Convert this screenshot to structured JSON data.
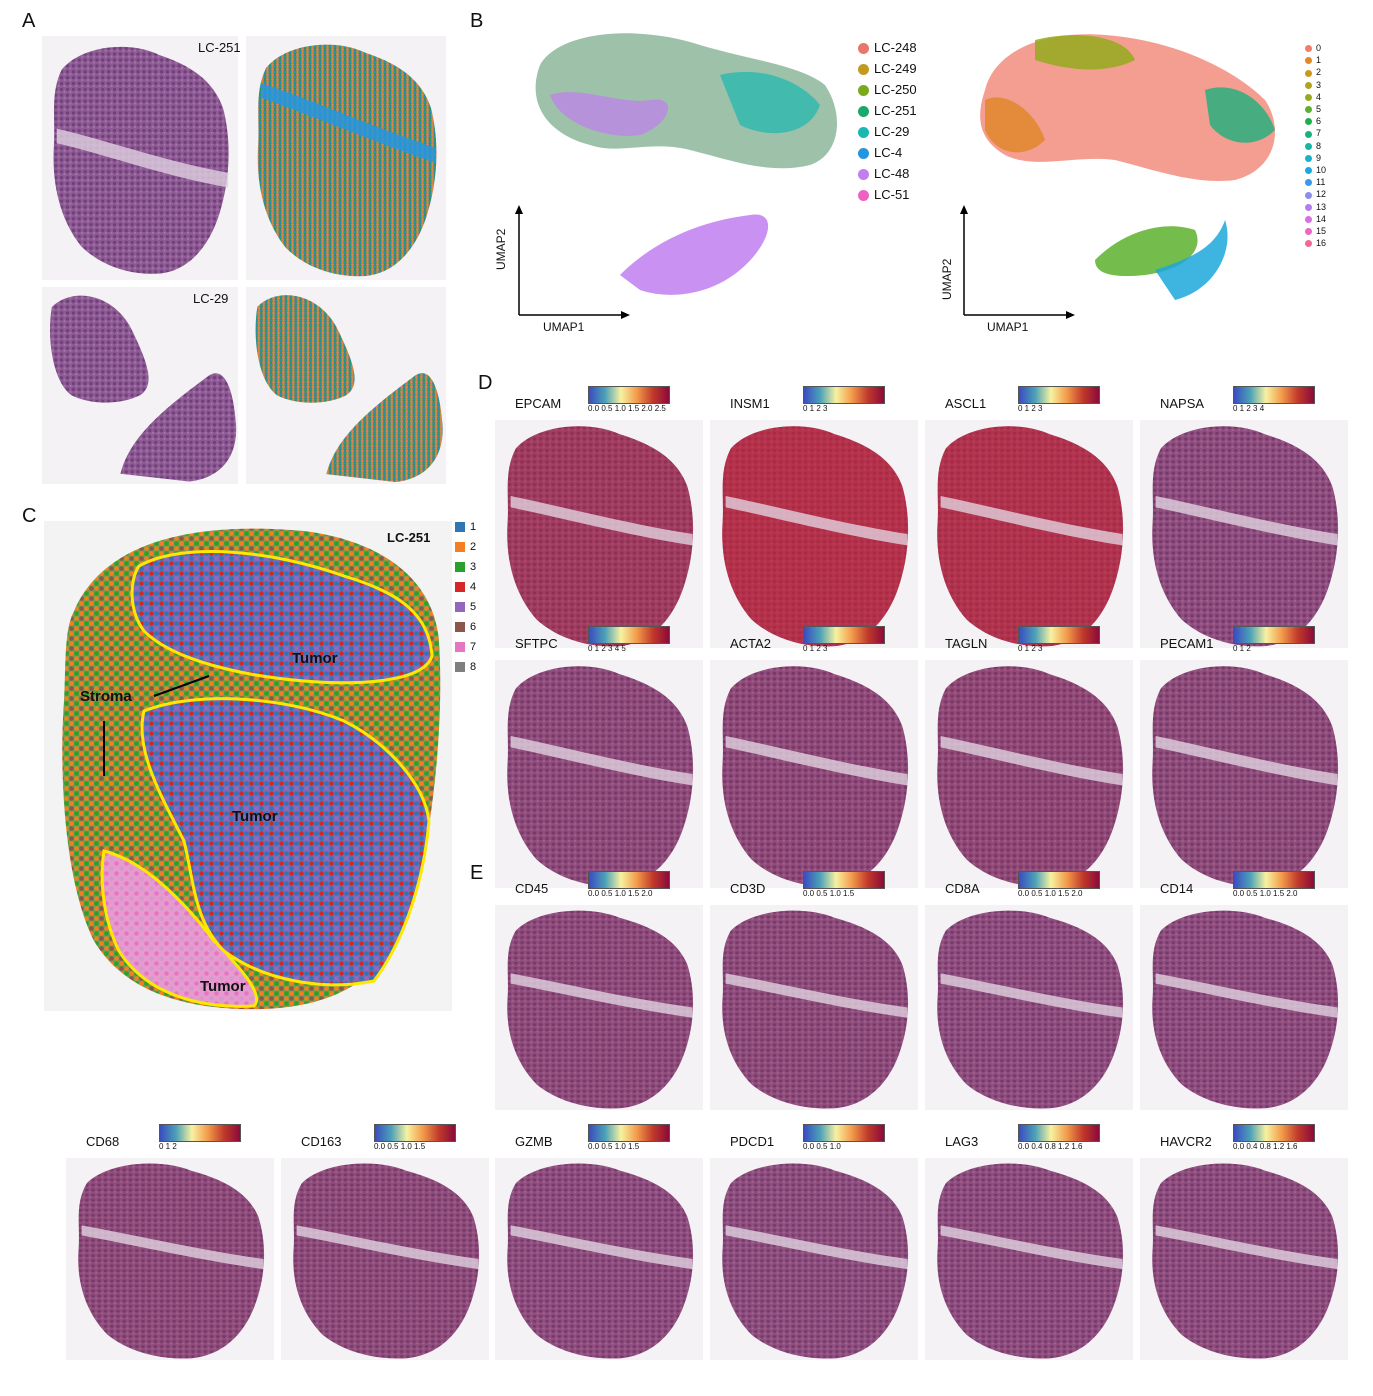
{
  "panels": {
    "A": "A",
    "B": "B",
    "C": "C",
    "D": "D",
    "E": "E"
  },
  "panel_a": {
    "sample_top": "LC-251",
    "sample_bottom": "LC-29"
  },
  "panel_b": {
    "axis_x": "UMAP1",
    "axis_y": "UMAP2",
    "samples": [
      {
        "label": "LC-248",
        "color": "#e8766b"
      },
      {
        "label": "LC-249",
        "color": "#c49a1c"
      },
      {
        "label": "LC-250",
        "color": "#7ca81e"
      },
      {
        "label": "LC-251",
        "color": "#1ca86a"
      },
      {
        "label": "LC-29",
        "color": "#1cb6b0"
      },
      {
        "label": "LC-4",
        "color": "#2496e0"
      },
      {
        "label": "LC-48",
        "color": "#c07ef0"
      },
      {
        "label": "LC-51",
        "color": "#f060c0"
      }
    ],
    "clusters": [
      {
        "label": "0",
        "color": "#f07c6c"
      },
      {
        "label": "1",
        "color": "#e0882c"
      },
      {
        "label": "2",
        "color": "#cc981c"
      },
      {
        "label": "3",
        "color": "#b0a41c"
      },
      {
        "label": "4",
        "color": "#94ac1c"
      },
      {
        "label": "5",
        "color": "#5cb02c"
      },
      {
        "label": "6",
        "color": "#1cb04c"
      },
      {
        "label": "7",
        "color": "#1cb07c"
      },
      {
        "label": "8",
        "color": "#1cb4a4"
      },
      {
        "label": "9",
        "color": "#1cb0c4"
      },
      {
        "label": "10",
        "color": "#1ca8dc"
      },
      {
        "label": "11",
        "color": "#3c98ec"
      },
      {
        "label": "12",
        "color": "#8c8cf0"
      },
      {
        "label": "13",
        "color": "#b47cf0"
      },
      {
        "label": "14",
        "color": "#d870e0"
      },
      {
        "label": "15",
        "color": "#ec64c4"
      },
      {
        "label": "16",
        "color": "#f06898"
      }
    ]
  },
  "panel_c": {
    "sample": "LC-251",
    "regions": {
      "tumor": "Tumor",
      "stroma": "Stroma"
    },
    "clusters": [
      {
        "label": "1",
        "color": "#2f77b4"
      },
      {
        "label": "2",
        "color": "#f57f20"
      },
      {
        "label": "3",
        "color": "#2ca02c"
      },
      {
        "label": "4",
        "color": "#d62728"
      },
      {
        "label": "5",
        "color": "#9467bd"
      },
      {
        "label": "6",
        "color": "#8c564b"
      },
      {
        "label": "7",
        "color": "#e377c2"
      },
      {
        "label": "8",
        "color": "#7f7f7f"
      }
    ]
  },
  "panel_d": [
    {
      "gene": "EPCAM",
      "ticks": "0.0 0.5 1.0 1.5 2.0 2.5",
      "level": 0.55
    },
    {
      "gene": "INSM1",
      "ticks": "0 1 2 3",
      "level": 0.85
    },
    {
      "gene": "ASCL1",
      "ticks": "0 1 2 3",
      "level": 0.8
    },
    {
      "gene": "NAPSA",
      "ticks": "0 1 2 3 4",
      "level": 0.08
    },
    {
      "gene": "SFTPC",
      "ticks": "0 1 2 3 4 5",
      "level": 0.12
    },
    {
      "gene": "ACTA2",
      "ticks": "0 1 2 3",
      "level": 0.15
    },
    {
      "gene": "TAGLN",
      "ticks": "0 1 2 3",
      "level": 0.18
    },
    {
      "gene": "PECAM1",
      "ticks": "0 1 2",
      "level": 0.1
    }
  ],
  "panel_e": [
    {
      "gene": "CD45",
      "ticks": "0.0 0.5 1.0 1.5 2.0",
      "level": 0.12
    },
    {
      "gene": "CD3D",
      "ticks": "0.0 0.5 1.0 1.5",
      "level": 0.1
    },
    {
      "gene": "CD8A",
      "ticks": "0.0 0.5 1.0 1.5 2.0",
      "level": 0.08
    },
    {
      "gene": "CD14",
      "ticks": "0.0 0.5 1.0 1.5 2.0",
      "level": 0.08
    },
    {
      "gene": "CD68",
      "ticks": "0 1 2",
      "level": 0.12
    },
    {
      "gene": "CD163",
      "ticks": "0.0 0.5 1.0 1.5",
      "level": 0.1
    },
    {
      "gene": "GZMB",
      "ticks": "0.0 0.5 1.0 1.5",
      "level": 0.08
    },
    {
      "gene": "PDCD1",
      "ticks": "0.0 0.5 1.0",
      "level": 0.06
    },
    {
      "gene": "LAG3",
      "ticks": "0.0 0.4 0.8 1.2 1.6",
      "level": 0.08
    },
    {
      "gene": "HAVCR2",
      "ticks": "0.0 0.4 0.8 1.2 1.6",
      "level": 0.08
    }
  ]
}
